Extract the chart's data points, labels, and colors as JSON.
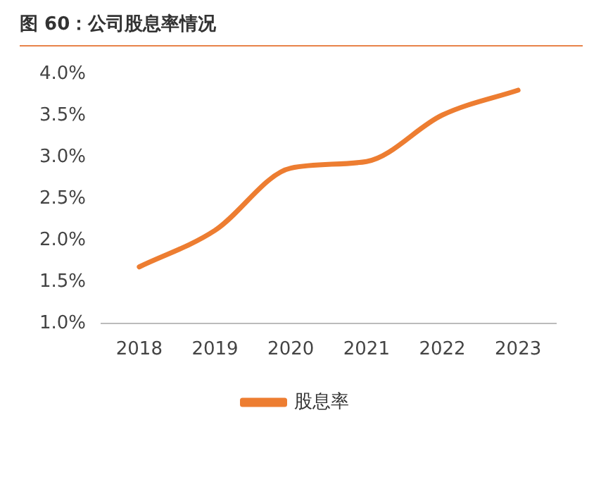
{
  "chart_data": {
    "type": "line",
    "title": "图 60：公司股息率情况",
    "categories": [
      "2018",
      "2019",
      "2020",
      "2021",
      "2022",
      "2023"
    ],
    "series": [
      {
        "name": "股息率",
        "color": "#ed7d31",
        "values": [
          1.68,
          2.12,
          2.87,
          2.95,
          3.51,
          3.81
        ]
      }
    ],
    "ylim": [
      1.0,
      4.0
    ],
    "yticks": [
      {
        "value": 1.0,
        "label": "1.0%"
      },
      {
        "value": 1.5,
        "label": "1.5%"
      },
      {
        "value": 2.0,
        "label": "2.0%"
      },
      {
        "value": 2.5,
        "label": "2.5%"
      },
      {
        "value": 3.0,
        "label": "3.0%"
      },
      {
        "value": 3.5,
        "label": "3.5%"
      },
      {
        "value": 4.0,
        "label": "4.0%"
      }
    ],
    "grid": false,
    "legend": "bottom",
    "marker": "none",
    "line_style": "solid"
  }
}
